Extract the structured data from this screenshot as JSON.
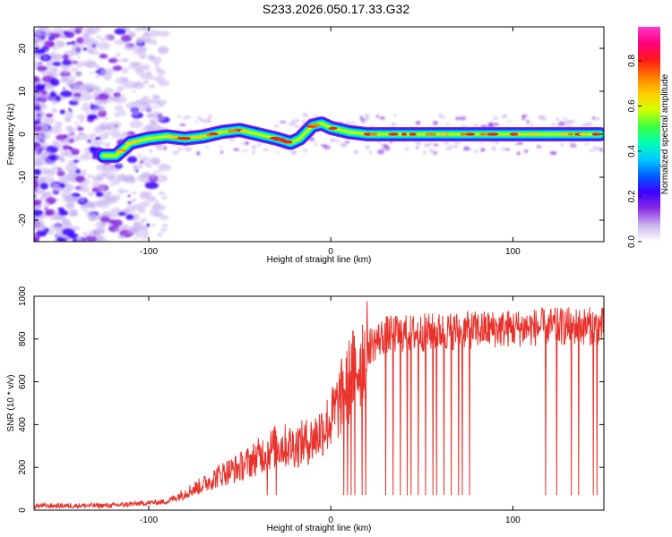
{
  "title": "S233.2026.050.17.33.G32",
  "colors": {
    "snr_line": "#e8322b",
    "axis": "#000000",
    "colormap": [
      "#ffffff",
      "#c9b3f0",
      "#8a2be2",
      "#3a00ff",
      "#0060ff",
      "#00ccff",
      "#00ffb0",
      "#40ff40",
      "#d8ff00",
      "#ffcc00",
      "#ff7a00",
      "#ff1a1a",
      "#ff0080",
      "#ff38c8"
    ]
  },
  "chart_data": [
    {
      "type": "heatmap",
      "name": "spectrogram",
      "xlabel": "Height of straight line (km)",
      "ylabel": "Frequency (Hz)",
      "xlim": [
        -163,
        150
      ],
      "ylim": [
        -25,
        25
      ],
      "x_ticks": [
        -100,
        0,
        100
      ],
      "y_ticks": [
        -20,
        -10,
        0,
        10,
        20
      ],
      "ridge": [
        {
          "x": -125,
          "y": -5
        },
        {
          "x": -118,
          "y": -5
        },
        {
          "x": -110,
          "y": -2
        },
        {
          "x": -100,
          "y": -1
        },
        {
          "x": -90,
          "y": -0.5
        },
        {
          "x": -80,
          "y": -1
        },
        {
          "x": -70,
          "y": -0.5
        },
        {
          "x": -60,
          "y": 0.5
        },
        {
          "x": -50,
          "y": 1
        },
        {
          "x": -40,
          "y": 0
        },
        {
          "x": -30,
          "y": -1
        },
        {
          "x": -22,
          "y": -2
        },
        {
          "x": -17,
          "y": -1
        },
        {
          "x": -10,
          "y": 2
        },
        {
          "x": -5,
          "y": 2.5
        },
        {
          "x": 0,
          "y": 1.5
        },
        {
          "x": 10,
          "y": 0.5
        },
        {
          "x": 20,
          "y": 0
        },
        {
          "x": 40,
          "y": 0
        },
        {
          "x": 60,
          "y": 0
        },
        {
          "x": 80,
          "y": 0
        },
        {
          "x": 100,
          "y": 0
        },
        {
          "x": 120,
          "y": 0
        },
        {
          "x": 148,
          "y": 0
        }
      ],
      "colorbar": {
        "label": "Normalized spectral amplitude",
        "range": [
          0,
          0.95
        ],
        "ticks": [
          "0.0",
          "0.2",
          "0.4",
          "0.6",
          "0.8"
        ]
      }
    },
    {
      "type": "line",
      "name": "snr",
      "xlabel": "Height of straight line (km)",
      "ylabel": "SNR (10 * v/v)",
      "xlim": [
        -163,
        150
      ],
      "ylim": [
        0,
        1000
      ],
      "x_ticks": [
        -100,
        0,
        100
      ],
      "y_ticks": [
        0,
        200,
        400,
        600,
        800,
        1000
      ],
      "envelope": [
        {
          "x": -163,
          "y": 20
        },
        {
          "x": -120,
          "y": 22
        },
        {
          "x": -90,
          "y": 40
        },
        {
          "x": -80,
          "y": 80
        },
        {
          "x": -70,
          "y": 120
        },
        {
          "x": -60,
          "y": 170
        },
        {
          "x": -50,
          "y": 200
        },
        {
          "x": -40,
          "y": 250
        },
        {
          "x": -30,
          "y": 300
        },
        {
          "x": -20,
          "y": 300
        },
        {
          "x": -10,
          "y": 330
        },
        {
          "x": 0,
          "y": 420
        },
        {
          "x": 10,
          "y": 600
        },
        {
          "x": 20,
          "y": 760
        },
        {
          "x": 30,
          "y": 820
        },
        {
          "x": 50,
          "y": 830
        },
        {
          "x": 70,
          "y": 840
        },
        {
          "x": 100,
          "y": 850
        },
        {
          "x": 130,
          "y": 860
        },
        {
          "x": 150,
          "y": 860
        }
      ],
      "dropouts": [
        -35,
        -30,
        7,
        9,
        11,
        13,
        17,
        19,
        30,
        34,
        38,
        42,
        44,
        48,
        52,
        56,
        58,
        62,
        66,
        70,
        72,
        76,
        118,
        124,
        132,
        136,
        144,
        146
      ],
      "dropout_level": 70
    }
  ]
}
